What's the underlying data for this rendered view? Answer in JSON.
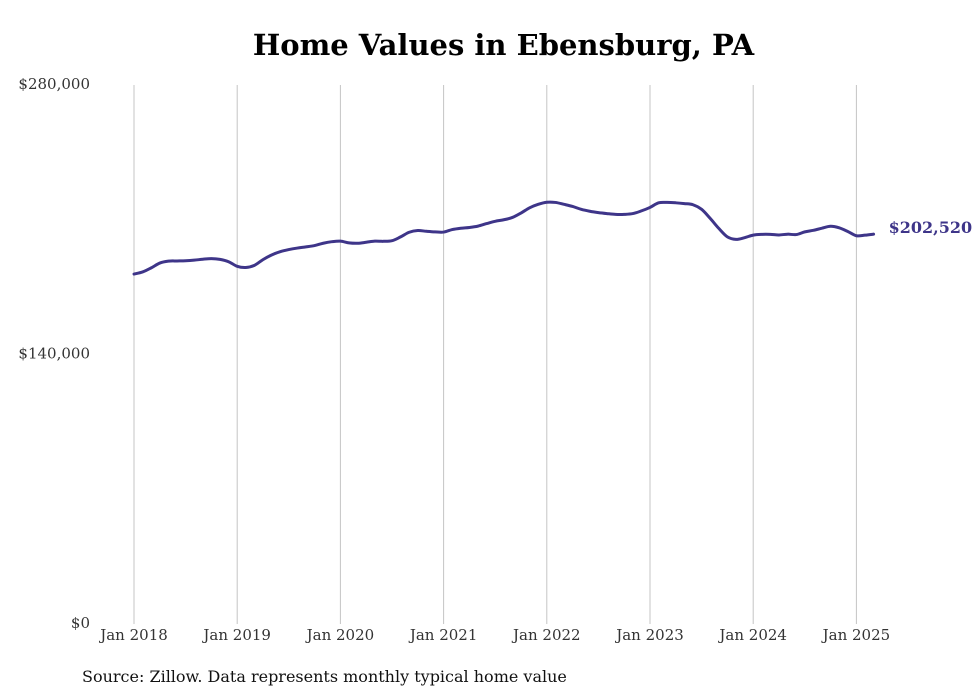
{
  "chart_data": {
    "type": "line",
    "title": "Home Values in Ebensburg, PA",
    "xlabel": "",
    "ylabel": "",
    "ylim": [
      0,
      280000
    ],
    "y_ticks": [
      {
        "value": 0,
        "label": "$0"
      },
      {
        "value": 140000,
        "label": "$140,000"
      },
      {
        "value": 280000,
        "label": "$280,000"
      }
    ],
    "x_ticks": [
      {
        "value": "2018-01",
        "label": "Jan 2018"
      },
      {
        "value": "2019-01",
        "label": "Jan 2019"
      },
      {
        "value": "2020-01",
        "label": "Jan 2020"
      },
      {
        "value": "2021-01",
        "label": "Jan 2021"
      },
      {
        "value": "2022-01",
        "label": "Jan 2022"
      },
      {
        "value": "2023-01",
        "label": "Jan 2023"
      },
      {
        "value": "2024-01",
        "label": "Jan 2024"
      },
      {
        "value": "2025-01",
        "label": "Jan 2025"
      }
    ],
    "grid": "vertical",
    "series": [
      {
        "color": "#3e3589",
        "x": [
          "2018-01",
          "2018-02",
          "2018-03",
          "2018-04",
          "2018-05",
          "2018-06",
          "2018-07",
          "2018-08",
          "2018-09",
          "2018-10",
          "2018-11",
          "2018-12",
          "2019-01",
          "2019-02",
          "2019-03",
          "2019-04",
          "2019-05",
          "2019-06",
          "2019-07",
          "2019-08",
          "2019-09",
          "2019-10",
          "2019-11",
          "2019-12",
          "2020-01",
          "2020-02",
          "2020-03",
          "2020-04",
          "2020-05",
          "2020-06",
          "2020-07",
          "2020-08",
          "2020-09",
          "2020-10",
          "2020-11",
          "2020-12",
          "2021-01",
          "2021-02",
          "2021-03",
          "2021-04",
          "2021-05",
          "2021-06",
          "2021-07",
          "2021-08",
          "2021-09",
          "2021-10",
          "2021-11",
          "2021-12",
          "2022-01",
          "2022-02",
          "2022-03",
          "2022-04",
          "2022-05",
          "2022-06",
          "2022-07",
          "2022-08",
          "2022-09",
          "2022-10",
          "2022-11",
          "2022-12",
          "2023-01",
          "2023-02",
          "2023-03",
          "2023-04",
          "2023-05",
          "2023-06",
          "2023-07",
          "2023-08",
          "2023-09",
          "2023-10",
          "2023-11",
          "2023-12",
          "2024-01",
          "2024-02",
          "2024-03",
          "2024-04",
          "2024-05",
          "2024-06",
          "2024-07",
          "2024-08",
          "2024-09",
          "2024-10",
          "2024-11",
          "2024-12",
          "2025-01",
          "2025-02",
          "2025-03"
        ],
        "values": [
          181800,
          182900,
          185000,
          187500,
          188500,
          188600,
          188700,
          189000,
          189500,
          189800,
          189400,
          188200,
          185800,
          185200,
          186300,
          189300,
          191700,
          193400,
          194500,
          195300,
          195900,
          196600,
          197800,
          198600,
          198900,
          198000,
          197800,
          198300,
          198900,
          198800,
          199100,
          201100,
          203500,
          204400,
          204000,
          203700,
          203600,
          204900,
          205600,
          206000,
          206700,
          208000,
          209200,
          210000,
          211200,
          213500,
          216200,
          218000,
          219100,
          219000,
          218000,
          216900,
          215400,
          214400,
          213700,
          213200,
          212800,
          212800,
          213200,
          214600,
          216400,
          218800,
          219000,
          218800,
          218400,
          217800,
          215400,
          210700,
          205500,
          201100,
          199800,
          200700,
          202000,
          202400,
          202400,
          202100,
          202500,
          202300,
          203700,
          204500,
          205600,
          206600,
          205800,
          203900,
          201700,
          202000,
          202520
        ]
      }
    ],
    "end_label": "$202,520"
  },
  "source_note": "Source: Zillow. Data represents monthly typical home value"
}
